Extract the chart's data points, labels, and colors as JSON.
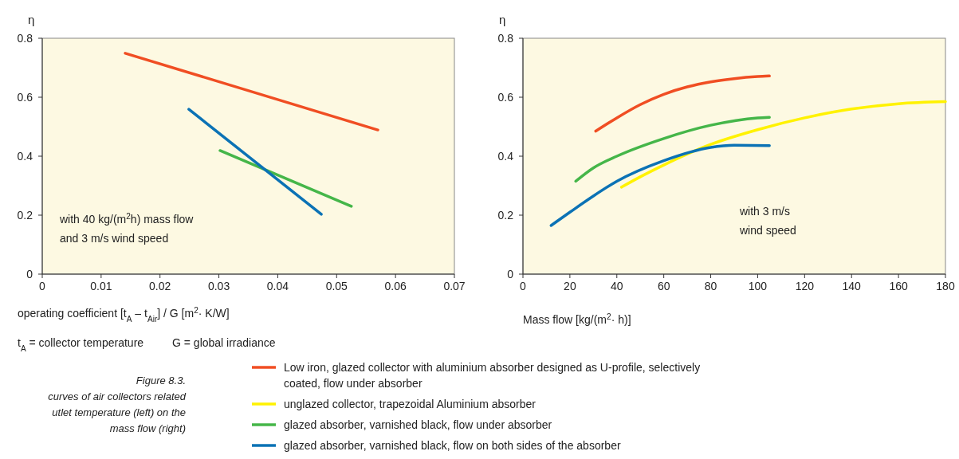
{
  "chart_data": [
    {
      "type": "line",
      "xlabel": "operating coefficient [t$_{A}$ – t$_{Air}$] / G [m$^{2}$· K/W]",
      "ylabel": "η",
      "xlim": [
        0,
        0.07
      ],
      "xticks": [
        0,
        0.01,
        0.02,
        0.03,
        0.04,
        0.05,
        0.06,
        0.07
      ],
      "ylim": [
        0,
        0.8
      ],
      "yticks": [
        0,
        0.2,
        0.4,
        0.6,
        0.8
      ],
      "grid": false,
      "series": [
        {
          "color": "#f04e23",
          "x": [
            0.0141,
            0.057
          ],
          "values": [
            0.749,
            0.489
          ]
        },
        {
          "color": "#45b649",
          "x": [
            0.0302,
            0.0525
          ],
          "values": [
            0.419,
            0.23
          ]
        },
        {
          "color": "#0b72b5",
          "x": [
            0.0249,
            0.0474
          ],
          "values": [
            0.559,
            0.203
          ]
        }
      ],
      "annotations": [
        "with 40 kg/(m$^{2}$h) mass flow\nand 3 m/s wind speed",
        "t$_{A}$ = collector temperature",
        "G = global irradiance",
        "Figure 8.3.",
        "curves of air collectors related",
        "utlet temperature (left) on the",
        "mass flow (right)"
      ]
    },
    {
      "type": "line",
      "xlabel": "Mass flow [kg/(m$^{2}$· h)]",
      "ylabel": "η",
      "xlim": [
        0,
        180
      ],
      "xticks": [
        0,
        20,
        40,
        60,
        80,
        100,
        120,
        140,
        160,
        180
      ],
      "ylim": [
        0,
        0.8
      ],
      "yticks": [
        0,
        0.2,
        0.4,
        0.6,
        0.8
      ],
      "grid": false,
      "legend": "bottom",
      "series": [
        {
          "name": "Low iron, glazed collector with aluminium absorber designed as U-profile, selectively coated, flow under absorber",
          "color": "#f04e23",
          "x": [
            31,
            40,
            50,
            60,
            70,
            80,
            90,
            100,
            105
          ],
          "values": [
            0.485,
            0.53,
            0.575,
            0.61,
            0.635,
            0.652,
            0.663,
            0.67,
            0.672
          ]
        },
        {
          "name": "unglazed collector, trapezoidal Aluminium absorber",
          "color": "#fff200",
          "x": [
            42,
            50,
            60,
            80,
            100,
            120,
            140,
            160,
            180
          ],
          "values": [
            0.295,
            0.33,
            0.37,
            0.44,
            0.49,
            0.53,
            0.56,
            0.578,
            0.585
          ]
        },
        {
          "name": "glazed absorber, varnished black, flow under absorber",
          "color": "#45b649",
          "x": [
            22.5,
            30,
            40,
            60,
            80,
            100,
            105
          ],
          "values": [
            0.315,
            0.36,
            0.4,
            0.46,
            0.505,
            0.53,
            0.532
          ]
        },
        {
          "name": "glazed absorber, varnished black, flow on both sides of the absorber",
          "color": "#0b72b5",
          "x": [
            12,
            20,
            30,
            40,
            60,
            80,
            90,
            105
          ],
          "values": [
            0.165,
            0.21,
            0.265,
            0.315,
            0.385,
            0.43,
            0.437,
            0.436
          ]
        }
      ],
      "annotations": [
        "with 3 m/s\nwind speed"
      ]
    }
  ]
}
